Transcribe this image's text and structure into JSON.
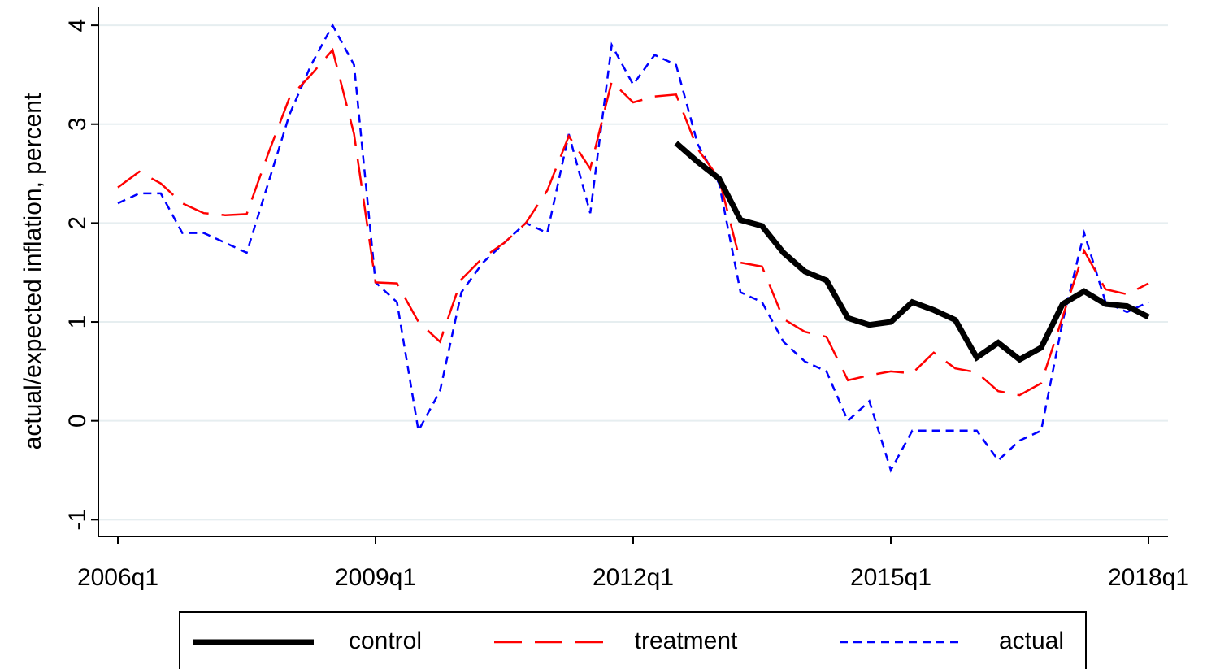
{
  "chart_data": {
    "type": "line",
    "y_label": "actual/expected inflation, percent",
    "categories": [
      "2006q1",
      null,
      null,
      null,
      null,
      null,
      null,
      null,
      null,
      null,
      null,
      null,
      "2009q1",
      null,
      null,
      null,
      null,
      null,
      null,
      null,
      null,
      null,
      null,
      null,
      "2012q1",
      null,
      null,
      null,
      null,
      null,
      null,
      null,
      null,
      null,
      null,
      null,
      "2015q1",
      null,
      null,
      null,
      null,
      null,
      null,
      null,
      null,
      null,
      null,
      null,
      "2018q1"
    ],
    "series": [
      {
        "name": "control",
        "color": "#000000",
        "dash": "solid",
        "values": [
          null,
          null,
          null,
          null,
          null,
          null,
          null,
          null,
          null,
          null,
          null,
          null,
          null,
          null,
          null,
          null,
          null,
          null,
          null,
          null,
          null,
          null,
          null,
          null,
          null,
          null,
          2.81,
          2.62,
          2.45,
          2.03,
          1.97,
          1.7,
          1.51,
          1.42,
          1.04,
          0.97,
          1.0,
          1.2,
          1.12,
          1.02,
          0.64,
          0.79,
          0.62,
          0.74,
          1.18,
          1.31,
          1.18,
          1.16,
          1.05
        ]
      },
      {
        "name": "treatment",
        "color": "#ff0000",
        "dash": "long",
        "values": [
          2.36,
          2.52,
          2.4,
          2.2,
          2.1,
          2.08,
          2.09,
          2.7,
          3.27,
          3.5,
          3.75,
          2.9,
          1.4,
          1.39,
          1.0,
          0.8,
          1.43,
          1.65,
          1.8,
          2.0,
          2.33,
          2.88,
          2.55,
          3.43,
          3.22,
          3.28,
          3.3,
          2.75,
          2.45,
          1.6,
          1.56,
          1.03,
          0.9,
          0.85,
          0.41,
          0.46,
          0.5,
          0.48,
          0.69,
          0.53,
          0.49,
          0.3,
          0.26,
          0.38,
          1.05,
          1.72,
          1.33,
          1.28,
          1.39
        ]
      },
      {
        "name": "actual",
        "color": "#0000ff",
        "dash": "short",
        "values": [
          2.2,
          2.3,
          2.3,
          1.9,
          1.9,
          1.8,
          1.7,
          2.4,
          3.1,
          3.6,
          4.0,
          3.6,
          1.4,
          1.2,
          -0.1,
          0.3,
          1.3,
          1.6,
          1.8,
          2.0,
          1.9,
          2.9,
          2.1,
          3.8,
          3.4,
          3.7,
          3.6,
          2.8,
          2.4,
          1.3,
          1.2,
          0.8,
          0.6,
          0.5,
          0.0,
          0.2,
          -0.5,
          -0.1,
          -0.1,
          -0.1,
          -0.1,
          -0.4,
          -0.2,
          -0.1,
          1.0,
          1.9,
          1.2,
          1.1,
          1.2
        ]
      }
    ],
    "ylim": [
      -1.17,
      4.19
    ],
    "yticks": [
      -1,
      0,
      1,
      2,
      3,
      4
    ],
    "grid": true,
    "legend": "bottom"
  }
}
